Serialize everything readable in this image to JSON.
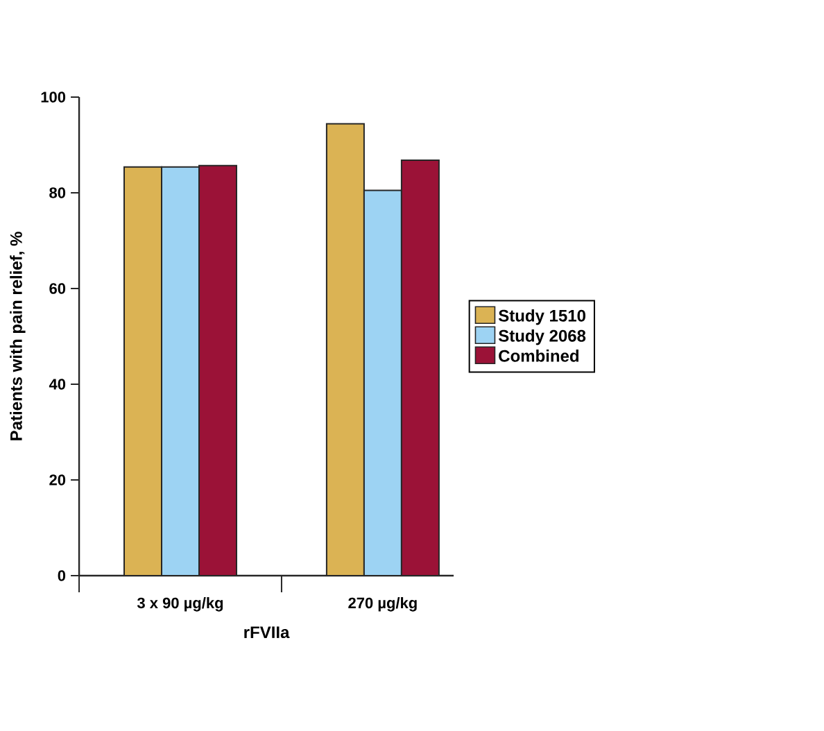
{
  "chart_data": {
    "type": "bar",
    "xlabel": "rFVIIa",
    "ylabel": "Patients with pain relief, %",
    "categories": [
      "3 x 90 µg/kg",
      "270 µg/kg"
    ],
    "series": [
      {
        "name": "Study 1510",
        "color": "#dbb354",
        "values": [
          85.4,
          94.4
        ]
      },
      {
        "name": "Study 2068",
        "color": "#9dd3f3",
        "values": [
          85.4,
          80.5
        ]
      },
      {
        "name": "Combined",
        "color": "#9b1237",
        "values": [
          85.7,
          86.8
        ]
      }
    ],
    "ylim": [
      0,
      100
    ],
    "yticks": [
      0,
      20,
      40,
      60,
      80,
      100
    ],
    "grid": false,
    "legend": "right"
  }
}
